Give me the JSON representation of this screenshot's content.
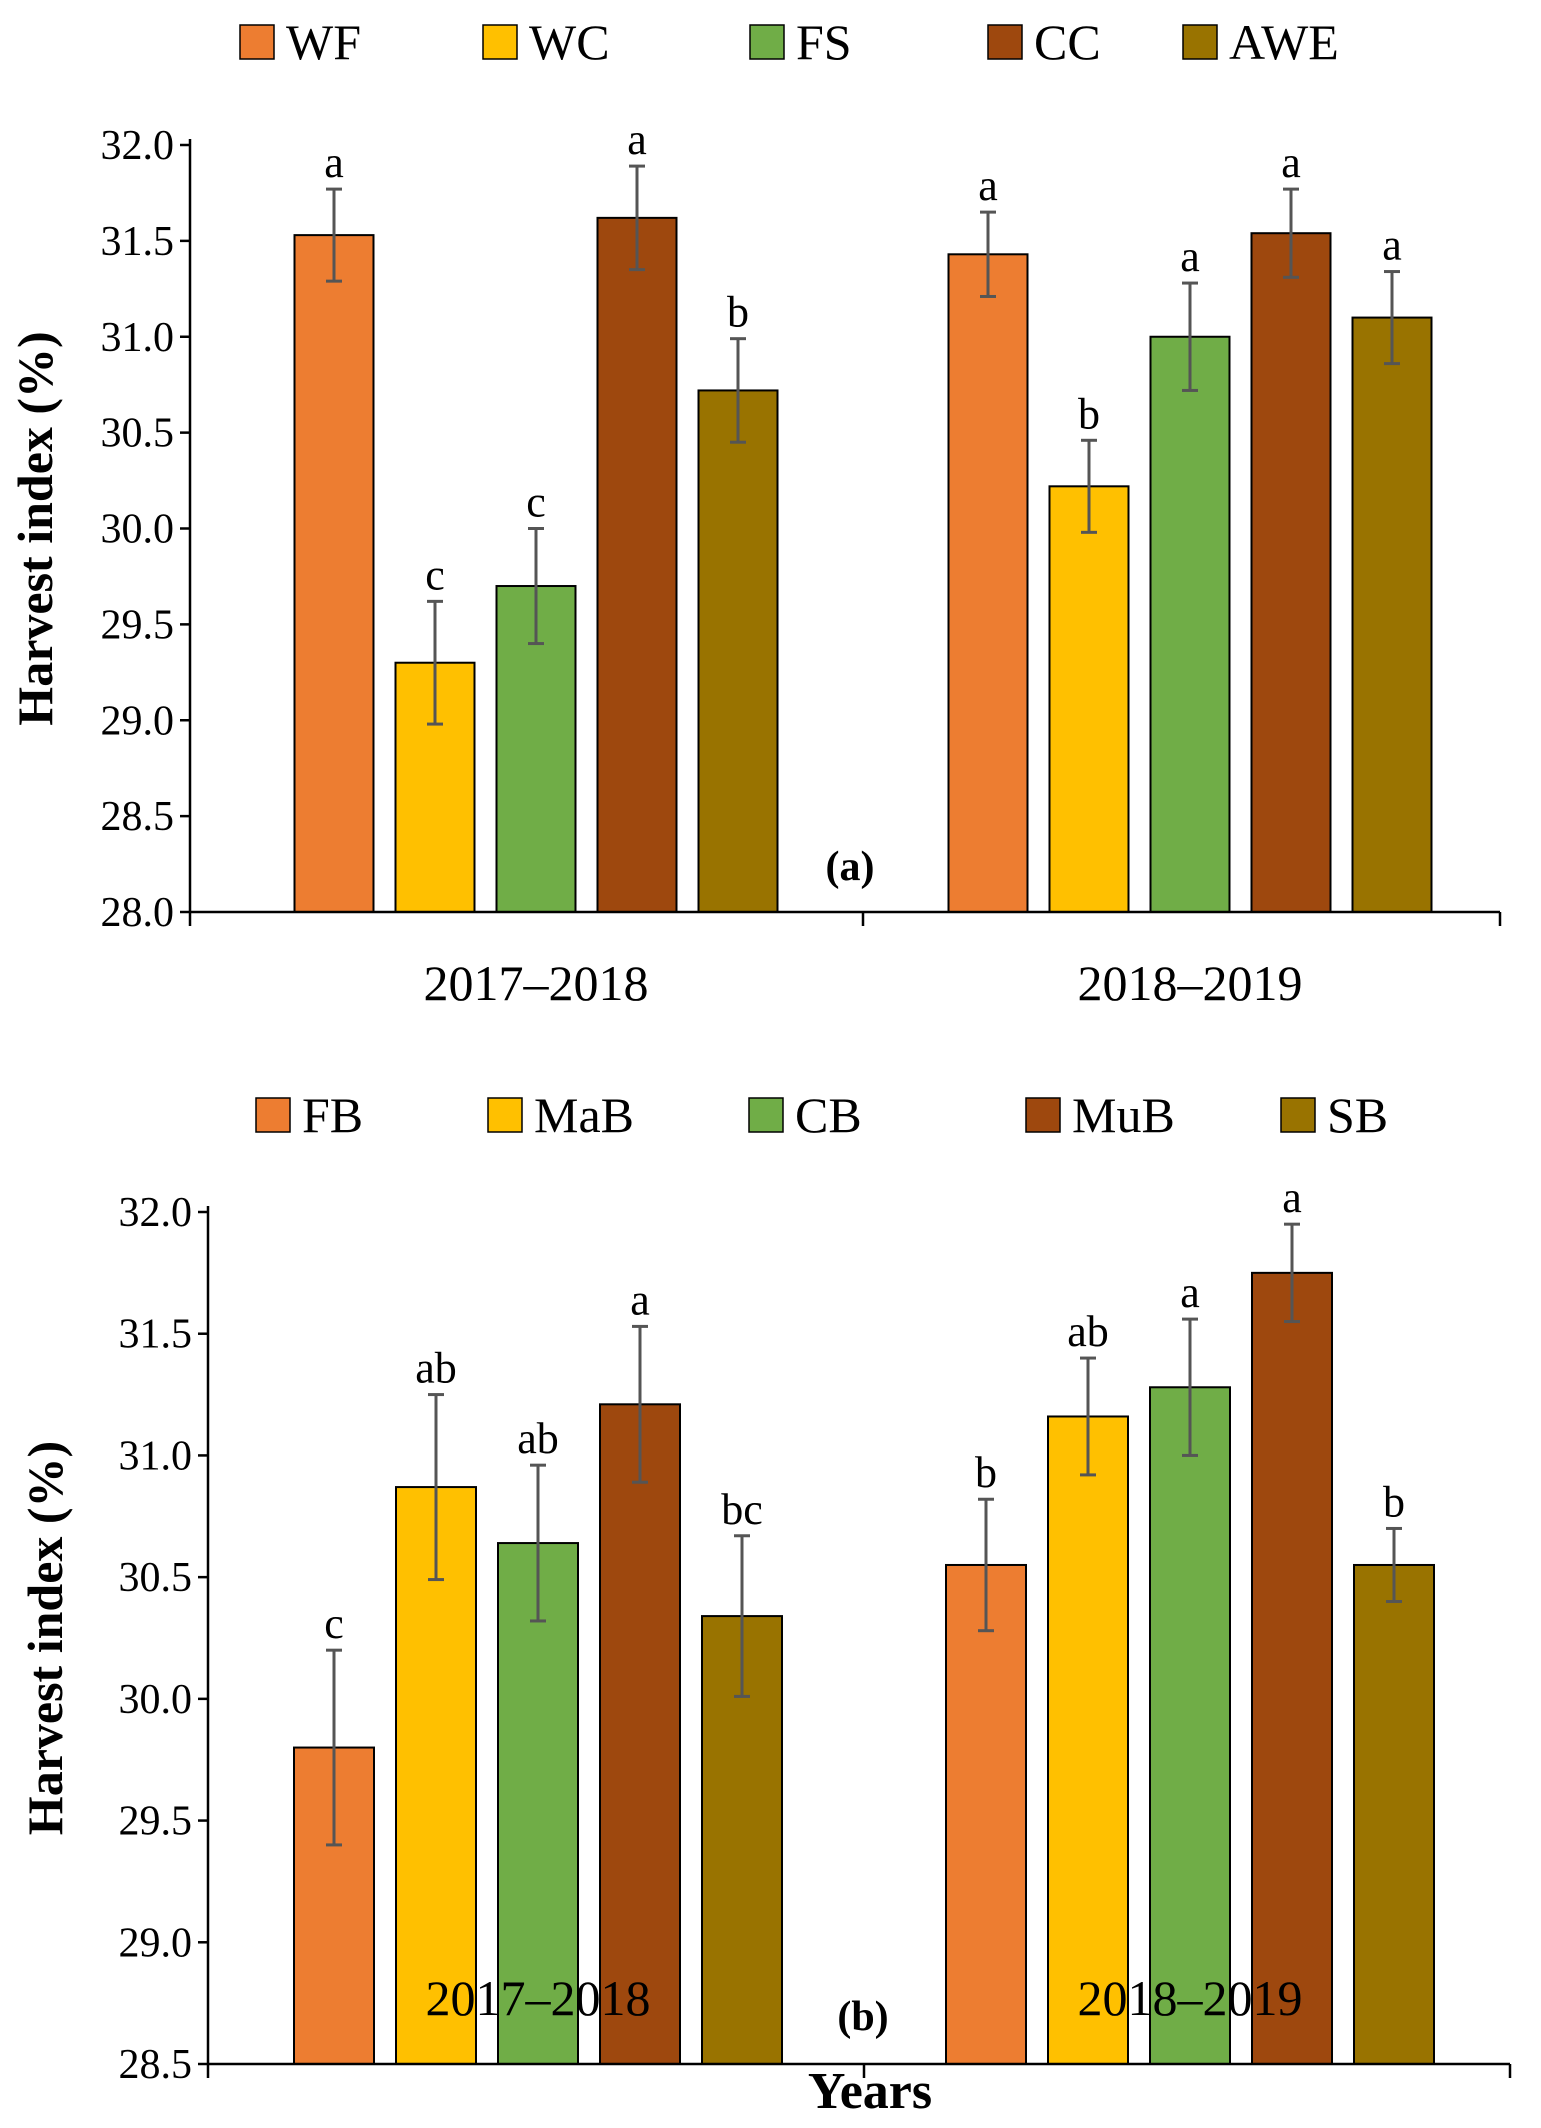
{
  "colors": {
    "series": [
      "#ED7D31",
      "#FFC000",
      "#70AD47",
      "#9E480E",
      "#997300"
    ],
    "axis": "#000000",
    "error_bar": "#555555"
  },
  "xlabel": "Years",
  "chart_data": [
    {
      "type": "bar",
      "panel_label": "(a)",
      "categories": [
        "2017–2018",
        "2018–2019"
      ],
      "series": [
        {
          "name": "WF",
          "values": [
            31.53,
            31.43
          ],
          "errors": [
            0.24,
            0.22
          ],
          "letters": [
            "a",
            "a"
          ]
        },
        {
          "name": "WC",
          "values": [
            29.3,
            30.22
          ],
          "errors": [
            0.32,
            0.24
          ],
          "letters": [
            "c",
            "b"
          ]
        },
        {
          "name": "FS",
          "values": [
            29.7,
            31.0
          ],
          "errors": [
            0.3,
            0.28
          ],
          "letters": [
            "c",
            "a"
          ]
        },
        {
          "name": "CC",
          "values": [
            31.62,
            31.54
          ],
          "errors": [
            0.27,
            0.23
          ],
          "letters": [
            "a",
            "a"
          ]
        },
        {
          "name": "AWE",
          "values": [
            30.72,
            31.1
          ],
          "errors": [
            0.27,
            0.24
          ],
          "letters": [
            "b",
            "a"
          ]
        }
      ],
      "ylim": [
        28.0,
        32.0
      ],
      "yticks": [
        "28.0",
        "28.5",
        "29.0",
        "29.5",
        "30.0",
        "30.5",
        "31.0",
        "31.5",
        "32.0"
      ],
      "ylabel": "Harvest index  (%)",
      "xlabel": "",
      "legend_position": "top"
    },
    {
      "type": "bar",
      "panel_label": "(b)",
      "categories": [
        "2017–2018",
        "2018–2019"
      ],
      "series": [
        {
          "name": "FB",
          "values": [
            29.8,
            30.55
          ],
          "errors": [
            0.4,
            0.27
          ],
          "letters": [
            "c",
            "b"
          ]
        },
        {
          "name": "MaB",
          "values": [
            30.87,
            31.16
          ],
          "errors": [
            0.38,
            0.24
          ],
          "letters": [
            "ab",
            "ab"
          ]
        },
        {
          "name": "CB",
          "values": [
            30.64,
            31.28
          ],
          "errors": [
            0.32,
            0.28
          ],
          "letters": [
            "ab",
            "a"
          ]
        },
        {
          "name": "MuB",
          "values": [
            31.21,
            31.75
          ],
          "errors": [
            0.32,
            0.2
          ],
          "letters": [
            "a",
            "a"
          ]
        },
        {
          "name": "SB",
          "values": [
            30.34,
            30.55
          ],
          "errors": [
            0.33,
            0.15
          ],
          "letters": [
            "bc",
            "b"
          ]
        }
      ],
      "ylim": [
        28.5,
        32.0
      ],
      "yticks": [
        "28.5",
        "29.0",
        "29.5",
        "30.0",
        "30.5",
        "31.0",
        "31.5",
        "32.0"
      ],
      "ylabel": "Harvest index  (%)",
      "xlabel": "Years",
      "legend_position": "top"
    }
  ]
}
